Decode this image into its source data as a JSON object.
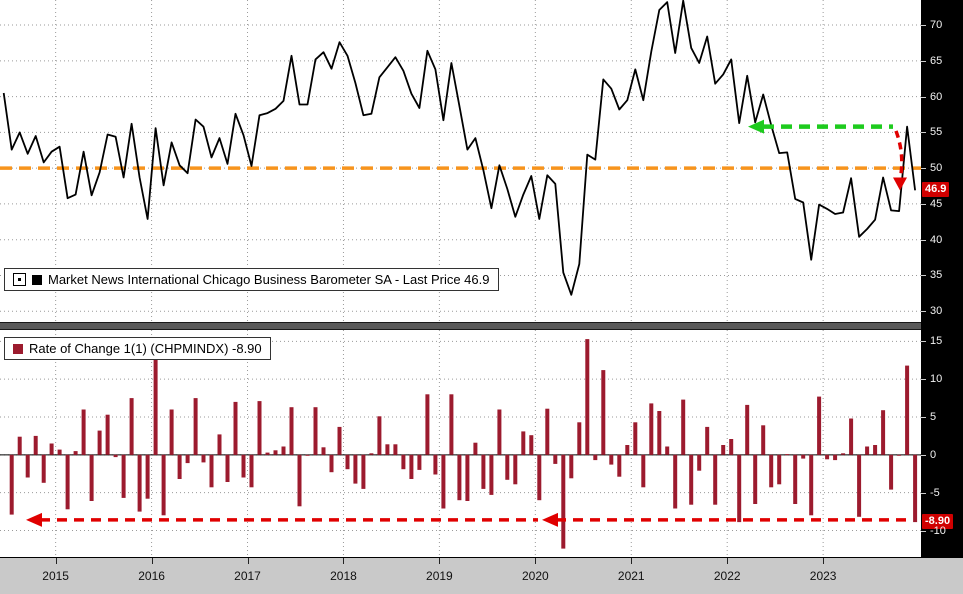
{
  "panels": {
    "top": {
      "legend": {
        "checkbox_icon": "box-with-dot",
        "swatch_color": "#000000",
        "label": "Market News International Chicago Business Barometer SA - Last Price 46.9"
      },
      "badge": "46.9",
      "y_ticks": [
        70,
        65,
        60,
        55,
        50,
        45,
        40,
        35,
        30
      ],
      "threshold_line": {
        "value": 50,
        "color": "#f7941d"
      },
      "annotations": {
        "green_arrow": {
          "type": "dashed-arrow-left",
          "level": 55.8,
          "color": "#1ecb1e"
        },
        "red_down_arrow": {
          "type": "dashed-arrow-down",
          "from": 55.2,
          "to": 46.9,
          "color": "#e00000"
        }
      }
    },
    "bottom": {
      "legend": {
        "swatch_color": "#9c1b2e",
        "label": "Rate of Change 1(1) (CHPMINDX)  -8.90"
      },
      "badge": "-8.90",
      "y_ticks": [
        15,
        10,
        5,
        0,
        -5,
        -10
      ],
      "annotations": {
        "red_arrows": {
          "type": "dashed-arrow-left-pair",
          "level": -8.6,
          "color": "#e00000"
        }
      }
    }
  },
  "x_axis": {
    "years": [
      "2015",
      "2016",
      "2017",
      "2018",
      "2019",
      "2020",
      "2021",
      "2022",
      "2023"
    ]
  },
  "colors": {
    "line": "#000000",
    "bar": "#9c1b2e",
    "orange": "#f7941d",
    "green": "#1ecb1e",
    "red": "#e00000",
    "badge_bg": "#d00000",
    "grid": "#9a9a9a",
    "plot_bg": "#ffffff",
    "frame_bg": "#000000"
  },
  "chart_data": [
    {
      "type": "line",
      "title": "Market News International Chicago Business Barometer SA - Last Price 46.9",
      "series_name": "Chicago Business Barometer SA",
      "frequency": "monthly",
      "start": "2014-06",
      "ylim": [
        28.5,
        73.5
      ],
      "yticks": [
        30,
        35,
        40,
        45,
        50,
        55,
        60,
        65,
        70
      ],
      "reference_line": 50,
      "last_value": 46.9,
      "values": [
        60.5,
        52.6,
        55.0,
        52.0,
        54.5,
        50.8,
        52.3,
        53.0,
        45.8,
        46.3,
        52.3,
        46.2,
        49.4,
        54.7,
        54.4,
        48.7,
        56.2,
        48.7,
        42.9,
        55.6,
        47.6,
        53.6,
        50.4,
        49.3,
        56.8,
        55.8,
        51.5,
        54.2,
        50.6,
        57.6,
        54.6,
        50.3,
        57.4,
        57.7,
        58.3,
        59.4,
        65.7,
        58.9,
        58.9,
        65.2,
        66.2,
        63.9,
        67.6,
        65.7,
        61.9,
        57.4,
        57.6,
        62.7,
        64.1,
        65.5,
        63.6,
        60.4,
        58.4,
        66.4,
        63.8,
        56.7,
        64.7,
        58.7,
        52.6,
        54.2,
        49.7,
        44.4,
        50.4,
        47.1,
        43.2,
        46.3,
        48.9,
        42.9,
        49.0,
        47.8,
        35.4,
        32.3,
        36.6,
        51.9,
        51.2,
        62.4,
        61.1,
        58.2,
        59.5,
        63.8,
        59.5,
        66.3,
        72.1,
        73.2,
        66.1,
        73.4,
        66.8,
        64.7,
        68.4,
        61.8,
        63.1,
        65.2,
        56.3,
        62.9,
        56.4,
        60.3,
        56.0,
        52.1,
        52.2,
        45.7,
        45.2,
        37.2,
        44.9,
        44.3,
        43.6,
        43.8,
        48.6,
        40.4,
        41.5,
        42.8,
        48.7,
        44.1,
        44.0,
        55.8,
        46.9
      ]
    },
    {
      "type": "bar",
      "title": "Rate of Change 1(1) (CHPMINDX) -8.90",
      "series_name": "Rate of Change 1(1) (CHPMINDX)",
      "frequency": "monthly",
      "start": "2014-07",
      "ylim": [
        -13.5,
        16.5
      ],
      "yticks": [
        -10,
        -5,
        0,
        5,
        10,
        15
      ],
      "last_value": -8.9,
      "values": [
        -7.9,
        2.4,
        -3.0,
        2.5,
        -3.7,
        1.5,
        0.7,
        -7.2,
        0.5,
        6.0,
        -6.1,
        3.2,
        5.3,
        -0.3,
        -5.7,
        7.5,
        -7.5,
        -5.8,
        12.7,
        -8.0,
        6.0,
        -3.2,
        -1.1,
        7.5,
        -1.0,
        -4.3,
        2.7,
        -3.6,
        7.0,
        -3.0,
        -4.3,
        7.1,
        0.3,
        0.6,
        1.1,
        6.3,
        -6.8,
        0.0,
        6.3,
        1.0,
        -2.3,
        3.7,
        -1.9,
        -3.8,
        -4.5,
        0.2,
        5.1,
        1.4,
        1.4,
        -1.9,
        -3.2,
        -2.0,
        8.0,
        -2.6,
        -7.1,
        8.0,
        -6.0,
        -6.1,
        1.6,
        -4.5,
        -5.3,
        6.0,
        -3.3,
        -3.9,
        3.1,
        2.6,
        -6.0,
        6.1,
        -1.2,
        -12.4,
        -3.1,
        4.3,
        15.3,
        -0.7,
        11.2,
        -1.3,
        -2.9,
        1.3,
        4.3,
        -4.3,
        6.8,
        5.8,
        1.1,
        -7.1,
        7.3,
        -6.6,
        -2.1,
        3.7,
        -6.6,
        1.3,
        2.1,
        -8.9,
        6.6,
        -6.5,
        3.9,
        -4.3,
        -3.9,
        0.1,
        -6.5,
        -0.5,
        -8.0,
        7.7,
        -0.6,
        -0.7,
        0.2,
        4.8,
        -8.2,
        1.1,
        1.3,
        5.9,
        -4.6,
        -0.1,
        11.8,
        -8.9
      ]
    }
  ]
}
